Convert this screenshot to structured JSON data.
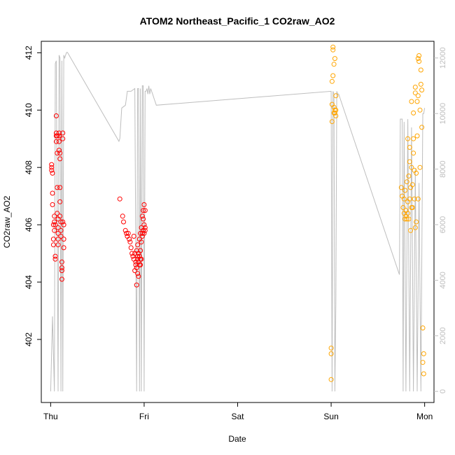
{
  "chart_data": {
    "type": "scatter",
    "title": "ATOM2 Northeast_Pacific_1 CO2raw_AO2",
    "xlabel": "Date",
    "ylabel": "CO2raw_AO2",
    "x_ticks": [
      "Thu",
      "Fri",
      "Sat",
      "Sun",
      "Mon"
    ],
    "y_ticks": [
      402,
      404,
      406,
      408,
      410,
      412
    ],
    "y2_ticks": [
      0,
      2000,
      4000,
      6000,
      8000,
      10000,
      12000
    ],
    "xlim": [
      -0.1,
      4.1
    ],
    "ylim": [
      399.8,
      412.4
    ],
    "y2lim": [
      -400,
      12600
    ],
    "grid": false,
    "colors": {
      "series1": "#ff0000",
      "series2": "#ffa500",
      "secondary_line": "#bebebe",
      "axes": "#000000",
      "right_axis": "#bebebe"
    },
    "series": [
      {
        "marker": "circle-open",
        "color": "#ff0000",
        "x": [
          0.01,
          0.01,
          0.01,
          0.02,
          0.02,
          0.02,
          0.03,
          0.03,
          0.03,
          0.04,
          0.04,
          0.04,
          0.05,
          0.05,
          0.05,
          0.06,
          0.06,
          0.06,
          0.06,
          0.07,
          0.07,
          0.07,
          0.07,
          0.08,
          0.08,
          0.08,
          0.08,
          0.08,
          0.09,
          0.09,
          0.09,
          0.09,
          0.1,
          0.1,
          0.1,
          0.1,
          0.1,
          0.11,
          0.11,
          0.11,
          0.12,
          0.12,
          0.12,
          0.12,
          0.13,
          0.13,
          0.13,
          0.14,
          0.14,
          0.14
        ],
        "y": [
          408.1,
          408.0,
          407.9,
          407.8,
          407.1,
          406.7,
          406.0,
          405.5,
          405.3,
          406.3,
          406.1,
          405.8,
          404.9,
          404.8,
          406.0,
          409.8,
          409.2,
          409.1,
          408.9,
          409.1,
          408.5,
          407.3,
          406.4,
          406.2,
          405.9,
          405.7,
          405.5,
          405.3,
          409.2,
          409.1,
          408.9,
          408.6,
          408.5,
          408.3,
          407.3,
          406.8,
          406.3,
          406.1,
          405.8,
          405.6,
          404.7,
          404.4,
          404.5,
          404.1,
          409.2,
          409.0,
          406.1,
          405.5,
          406.0,
          405.2
        ]
      },
      {
        "marker": "circle-open",
        "color": "#ff0000",
        "x": [
          0.74,
          0.77,
          0.78,
          0.8,
          0.81,
          0.82,
          0.83,
          0.84,
          0.85,
          0.86,
          0.87,
          0.88,
          0.89,
          0.89,
          0.9,
          0.9,
          0.91,
          0.91,
          0.92,
          0.92,
          0.92,
          0.93,
          0.93,
          0.93,
          0.93,
          0.94,
          0.94,
          0.94,
          0.95,
          0.95,
          0.95,
          0.96,
          0.96,
          0.96,
          0.96,
          0.97,
          0.97,
          0.97,
          0.98,
          0.98,
          0.98,
          0.99,
          0.99,
          0.99,
          1.0,
          1.0,
          1.0,
          1.01,
          1.01,
          1.01
        ],
        "y": [
          406.9,
          406.3,
          406.1,
          405.8,
          405.7,
          405.6,
          405.7,
          405.5,
          405.4,
          405.2,
          405.0,
          404.9,
          404.8,
          405.6,
          405.0,
          404.4,
          404.7,
          404.6,
          403.9,
          404.5,
          405.1,
          404.8,
          404.3,
          404.9,
          405.3,
          404.2,
          404.7,
          405.0,
          405.5,
          404.9,
          404.6,
          405.7,
          405.1,
          404.8,
          404.6,
          405.9,
          405.4,
          404.8,
          406.3,
          405.7,
          405.6,
          406.5,
          406.2,
          405.8,
          406.7,
          406.0,
          405.7,
          406.5,
          405.9,
          405.8
        ]
      },
      {
        "marker": "circle-open",
        "color": "#ffa500",
        "x": [
          3.0,
          3.0,
          3.0,
          3.01,
          3.01,
          3.01,
          3.02,
          3.02,
          3.02,
          3.03,
          3.03,
          3.03,
          3.04,
          3.04,
          3.04,
          3.05,
          3.05,
          3.05
        ],
        "y": [
          400.6,
          401.7,
          401.5,
          409.6,
          410.2,
          411.0,
          411.2,
          412.2,
          412.1,
          410.1,
          409.9,
          411.6,
          411.8,
          409.9,
          410.0,
          410.0,
          410.5,
          409.8
        ]
      },
      {
        "marker": "circle-open",
        "color": "#ffa500",
        "x": [
          3.75,
          3.76,
          3.77,
          3.78,
          3.78,
          3.79,
          3.79,
          3.8,
          3.8,
          3.81,
          3.81,
          3.82,
          3.82,
          3.82,
          3.83,
          3.83,
          3.84,
          3.84,
          3.84,
          3.85,
          3.85,
          3.86,
          3.86,
          3.86,
          3.87,
          3.87,
          3.88,
          3.88,
          3.88,
          3.89,
          3.89,
          3.9,
          3.9,
          3.9,
          3.91,
          3.91,
          3.92,
          3.92,
          3.93,
          3.93,
          3.93,
          3.94,
          3.94,
          3.95,
          3.95,
          3.96,
          3.96,
          3.97,
          3.97,
          3.98,
          3.98,
          3.99,
          3.99
        ],
        "y": [
          407.3,
          407.0,
          406.6,
          406.4,
          406.9,
          406.2,
          407.2,
          406.3,
          406.5,
          406.2,
          407.5,
          406.4,
          406.8,
          409.0,
          406.2,
          407.7,
          406.9,
          408.2,
          408.7,
          405.8,
          407.3,
          406.6,
          408.0,
          410.3,
          406.6,
          407.4,
          408.5,
          409.0,
          409.9,
          407.9,
          406.9,
          410.6,
          410.8,
          405.9,
          406.1,
          407.8,
          410.3,
          409.1,
          406.9,
          410.5,
          411.8,
          411.9,
          411.7,
          410.0,
          408.0,
          410.9,
          411.4,
          410.7,
          409.4,
          402.4,
          401.2,
          400.8,
          401.5
        ]
      }
    ],
    "secondary_series": {
      "axis": "right",
      "color": "#bebebe",
      "x": [
        0.0,
        0.02,
        0.04,
        0.05,
        0.06,
        0.08,
        0.09,
        0.1,
        0.11,
        0.12,
        0.13,
        0.14,
        0.15,
        0.16,
        0.17,
        0.18,
        0.18,
        0.73,
        0.74,
        0.76,
        0.8,
        0.82,
        0.85,
        0.86,
        0.9,
        0.92,
        0.93,
        0.94,
        0.95,
        0.96,
        0.97,
        0.98,
        0.99,
        1.0,
        1.01,
        1.02,
        1.03,
        1.04,
        1.05,
        1.06,
        1.07,
        1.08,
        1.09,
        1.1,
        1.11,
        1.12,
        1.13,
        3.0,
        3.01,
        3.02,
        3.03,
        3.04,
        3.05,
        3.06,
        3.07,
        3.08,
        3.73,
        3.74,
        3.76,
        3.77,
        3.78,
        3.8,
        3.82,
        3.84,
        3.86,
        3.88,
        3.9,
        3.92,
        3.94,
        3.96,
        3.98,
        3.99,
        4.0
      ],
      "y": [
        0,
        2700,
        0,
        11800,
        11900,
        0,
        12100,
        12000,
        0,
        11900,
        0,
        12100,
        12000,
        12100,
        12200,
        12200,
        12200,
        9000,
        9100,
        10200,
        10300,
        10800,
        10800,
        10800,
        10900,
        0,
        10900,
        10900,
        0,
        10900,
        0,
        11000,
        11000,
        0,
        10800,
        10800,
        10900,
        10700,
        11000,
        10700,
        10900,
        10800,
        10700,
        10600,
        10500,
        10400,
        10300,
        10800,
        0,
        10800,
        10700,
        0,
        3200,
        10800,
        10700,
        10700,
        4200,
        9800,
        9800,
        0,
        9700,
        0,
        9800,
        0,
        9500,
        0,
        8000,
        0,
        7500,
        0,
        10000,
        10000,
        10200
      ]
    }
  }
}
